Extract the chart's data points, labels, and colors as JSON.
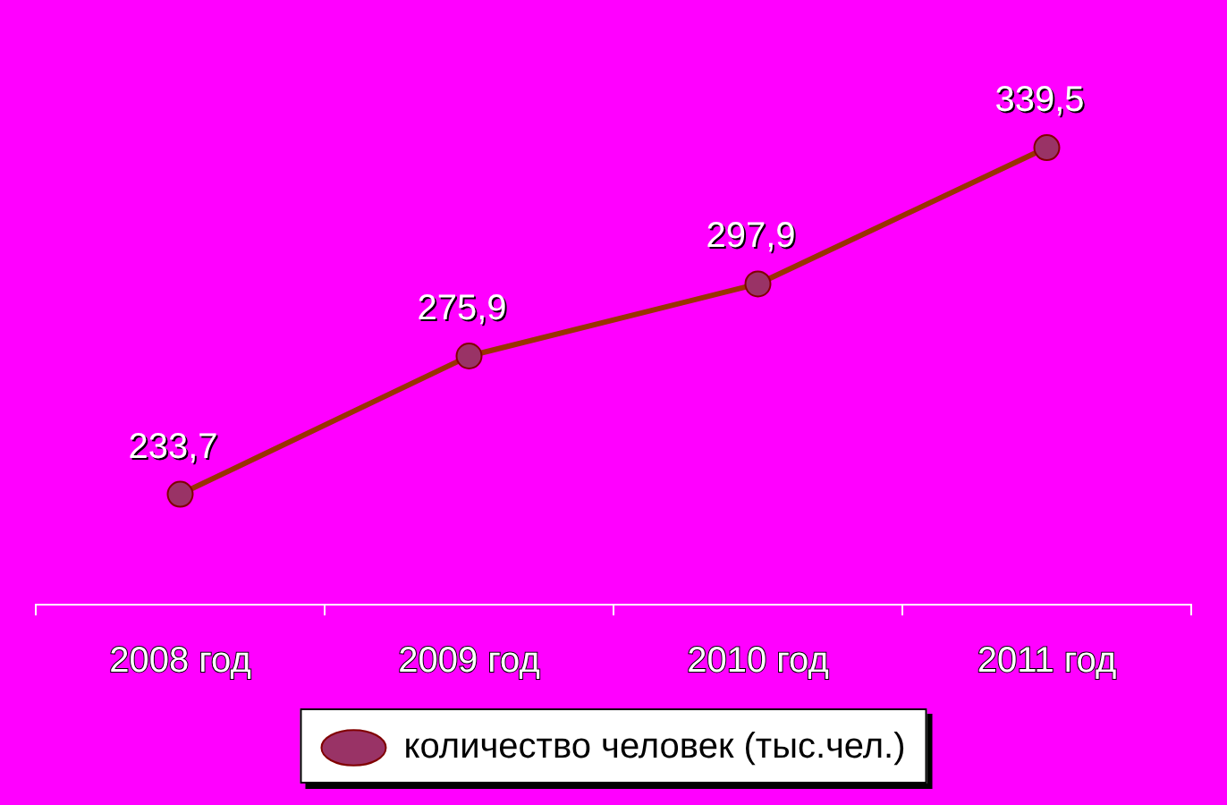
{
  "chart_data": {
    "type": "line",
    "categories": [
      "2008 год",
      "2009 год",
      "2010 год",
      "2011 год"
    ],
    "series": [
      {
        "name": "количество человек (тыс.чел.)",
        "color": "#993300",
        "values": [
          233.7,
          275.9,
          297.9,
          339.5
        ],
        "value_labels": [
          "233,7",
          "275,9",
          "297,9",
          "339,5"
        ]
      }
    ],
    "marker": "circle",
    "legend": "bottom",
    "grid": false
  }
}
